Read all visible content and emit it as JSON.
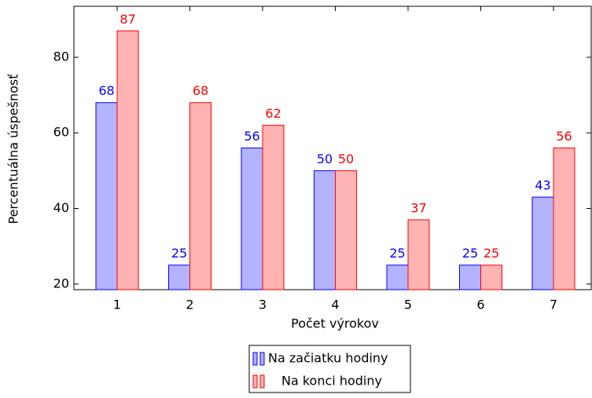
{
  "chart_data": {
    "type": "bar",
    "categories": [
      "1",
      "2",
      "3",
      "4",
      "5",
      "6",
      "7"
    ],
    "series": [
      {
        "name": "Na začiatku hodiny",
        "color": "#0000ff",
        "fill": "#b3b3ff",
        "values": [
          68,
          25,
          56,
          50,
          25,
          25,
          43
        ]
      },
      {
        "name": "Na konci hodiny",
        "color": "#ff0000",
        "fill": "#ffb3b3",
        "values": [
          87,
          68,
          62,
          50,
          37,
          25,
          56
        ]
      }
    ],
    "x_label": "Počet výrokov",
    "y_label": "Percentuálna úspešnosť",
    "ylim": [
      18.5,
      93.5
    ],
    "yticks": [
      20,
      40,
      60,
      80
    ]
  }
}
